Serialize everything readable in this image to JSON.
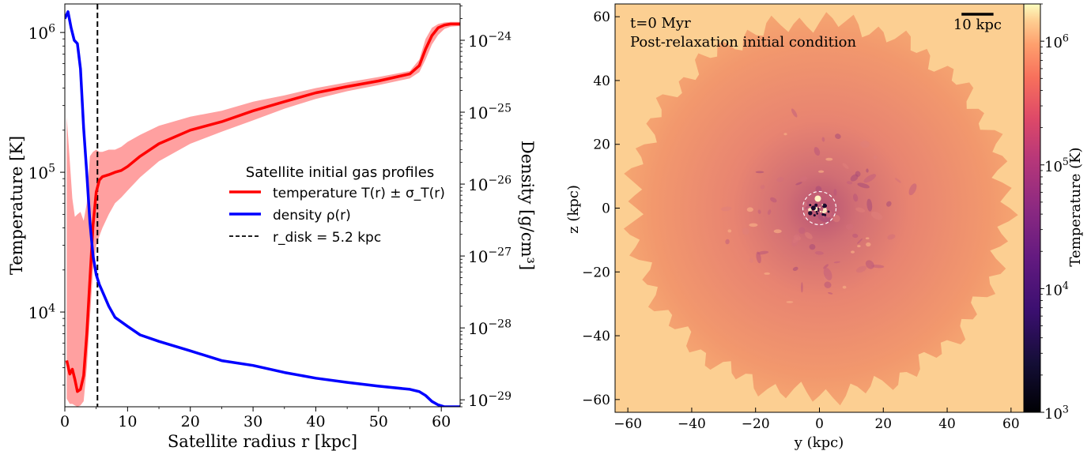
{
  "chart_data": [
    {
      "type": "line",
      "xlabel": "Satellite radius r [kpc]",
      "ylabel_left": "Temperature [K]",
      "ylabel_right": "Density [g/cm³]",
      "xlim": [
        0,
        63
      ],
      "ylim_left": [
        2100,
        1600000
      ],
      "ylim_right": [
        8e-30,
        3.2e-24
      ],
      "yscale_left": "log",
      "yscale_right": "log",
      "x_ticks": [
        "0",
        "10",
        "20",
        "30",
        "40",
        "50",
        "60"
      ],
      "x_tick_values": [
        0,
        10,
        20,
        30,
        40,
        50,
        60
      ],
      "y_left_ticks": [
        {
          "value": 10000,
          "base": "10",
          "exp": "4"
        },
        {
          "value": 100000,
          "base": "10",
          "exp": "5"
        },
        {
          "value": 1000000,
          "base": "10",
          "exp": "6"
        }
      ],
      "y_right_ticks": [
        {
          "value": 1e-29,
          "base": "10",
          "exp": "−29"
        },
        {
          "value": 1e-28,
          "base": "10",
          "exp": "−28"
        },
        {
          "value": 1e-27,
          "base": "10",
          "exp": "−27"
        },
        {
          "value": 1e-26,
          "base": "10",
          "exp": "−26"
        },
        {
          "value": 1e-25,
          "base": "10",
          "exp": "−25"
        },
        {
          "value": 1e-24,
          "base": "10",
          "exp": "−24"
        }
      ],
      "legend": {
        "title": "Satellite initial gas profiles",
        "placement": "center-right",
        "entries": [
          "temperature T(r) ± σ_T(r)",
          "density ρ(r)",
          "r_disk = 5.2 kpc"
        ]
      },
      "colors": {
        "temperature": "#ff0000",
        "band": "#ff8080",
        "density": "#0000ff",
        "disk": "#000000"
      },
      "series": [
        {
          "name": "temperature T(r) ± σ_T(r)",
          "axis": "left",
          "x": [
            0.3,
            0.8,
            1.2,
            1.6,
            2.0,
            2.5,
            3.0,
            3.5,
            4.0,
            4.5,
            5.0,
            5.5,
            6.0,
            7.0,
            8.0,
            9.0,
            10,
            12,
            15,
            20,
            25,
            30,
            35,
            40,
            45,
            50,
            55,
            56.5,
            57.5,
            58.5,
            59.5,
            60.5,
            61.5,
            62.5,
            63
          ],
          "values": [
            4500,
            3600,
            3900,
            3300,
            2700,
            2800,
            3500,
            7000,
            17000,
            42000,
            72000,
            88000,
            93000,
            96000,
            100000,
            103000,
            110000,
            130000,
            160000,
            200000,
            230000,
            275000,
            320000,
            370000,
            410000,
            450000,
            505000,
            580000,
            760000,
            950000,
            1080000,
            1130000,
            1150000,
            1150000,
            1150000
          ],
          "lower": [
            2400,
            2200,
            2200,
            2150,
            2100,
            2150,
            2300,
            4000,
            9000,
            20000,
            30000,
            35000,
            40000,
            50000,
            60000,
            66000,
            74000,
            92000,
            120000,
            160000,
            195000,
            235000,
            285000,
            335000,
            380000,
            420000,
            470000,
            520000,
            640000,
            820000,
            960000,
            1060000,
            1100000,
            1110000,
            1110000
          ],
          "upper": [
            250000,
            120000,
            65000,
            48000,
            50000,
            52000,
            45000,
            60000,
            130000,
            140000,
            145000,
            140000,
            140000,
            145000,
            145000,
            152000,
            165000,
            185000,
            215000,
            250000,
            275000,
            320000,
            355000,
            400000,
            440000,
            480000,
            530000,
            640000,
            900000,
            1080000,
            1150000,
            1180000,
            1190000,
            1190000,
            1190000
          ]
        },
        {
          "name": "density ρ(r)",
          "axis": "right",
          "x": [
            0.0,
            0.5,
            1.0,
            1.5,
            2.0,
            2.5,
            3.0,
            3.5,
            4.0,
            4.5,
            5.0,
            5.5,
            6.0,
            7.0,
            8.0,
            10,
            12,
            15,
            20,
            25,
            30,
            35,
            40,
            45,
            50,
            55,
            56.5,
            57.5,
            58.5,
            59.5,
            60.5,
            61.5,
            62.5,
            63
          ],
          "values": [
            2e-24,
            2.5e-24,
            1.5e-24,
            1e-24,
            9e-25,
            4e-25,
            6e-26,
            1.4e-26,
            3e-27,
            1e-27,
            5.5e-28,
            4e-28,
            3.2e-28,
            2e-28,
            1.4e-28,
            1.05e-28,
            8e-29,
            6.5e-29,
            4.8e-29,
            3.5e-29,
            3e-29,
            2.4e-29,
            2e-29,
            1.75e-29,
            1.55e-29,
            1.4e-29,
            1.3e-29,
            1.15e-29,
            9.5e-30,
            8.5e-30,
            8e-30,
            8e-30,
            8e-30,
            8e-30
          ]
        }
      ],
      "annotations": [
        {
          "type": "vline",
          "x": 5.2,
          "style": "dashed",
          "label": "r_disk = 5.2 kpc"
        }
      ]
    },
    {
      "type": "heatmap",
      "xlabel": "y  (kpc)",
      "ylabel": "z  (kpc)",
      "xlim": [
        -64,
        64
      ],
      "ylim": [
        -64,
        64
      ],
      "x_ticks": [
        -60,
        -40,
        -20,
        0,
        20,
        40,
        60
      ],
      "y_ticks": [
        -60,
        -40,
        -20,
        0,
        20,
        40,
        60
      ],
      "x_tick_labels": [
        "−60",
        "−40",
        "−20",
        "0",
        "20",
        "40",
        "60"
      ],
      "y_tick_labels": [
        "−60",
        "−40",
        "−20",
        "0",
        "20",
        "40",
        "60"
      ],
      "annotations": {
        "time": "t=0 Myr",
        "subtitle": "Post-relaxation initial condition",
        "scalebar": "10 kpc",
        "disk_circle": "dashed white circle at origin"
      },
      "colorbar": {
        "label": "Temperature  (K)",
        "scale": "log",
        "range": [
          1000,
          2000000
        ],
        "colormap": "magma",
        "ticks": [
          {
            "value": 1000,
            "base": "10",
            "exp": "3"
          },
          {
            "value": 10000,
            "base": "10",
            "exp": "4"
          },
          {
            "value": 100000,
            "base": "10",
            "exp": "5"
          },
          {
            "value": 1000000,
            "base": "10",
            "exp": "6"
          }
        ]
      },
      "colors": {
        "background": "#fccf92",
        "halo": "#f29a6e",
        "core": "#c5607a"
      }
    }
  ]
}
